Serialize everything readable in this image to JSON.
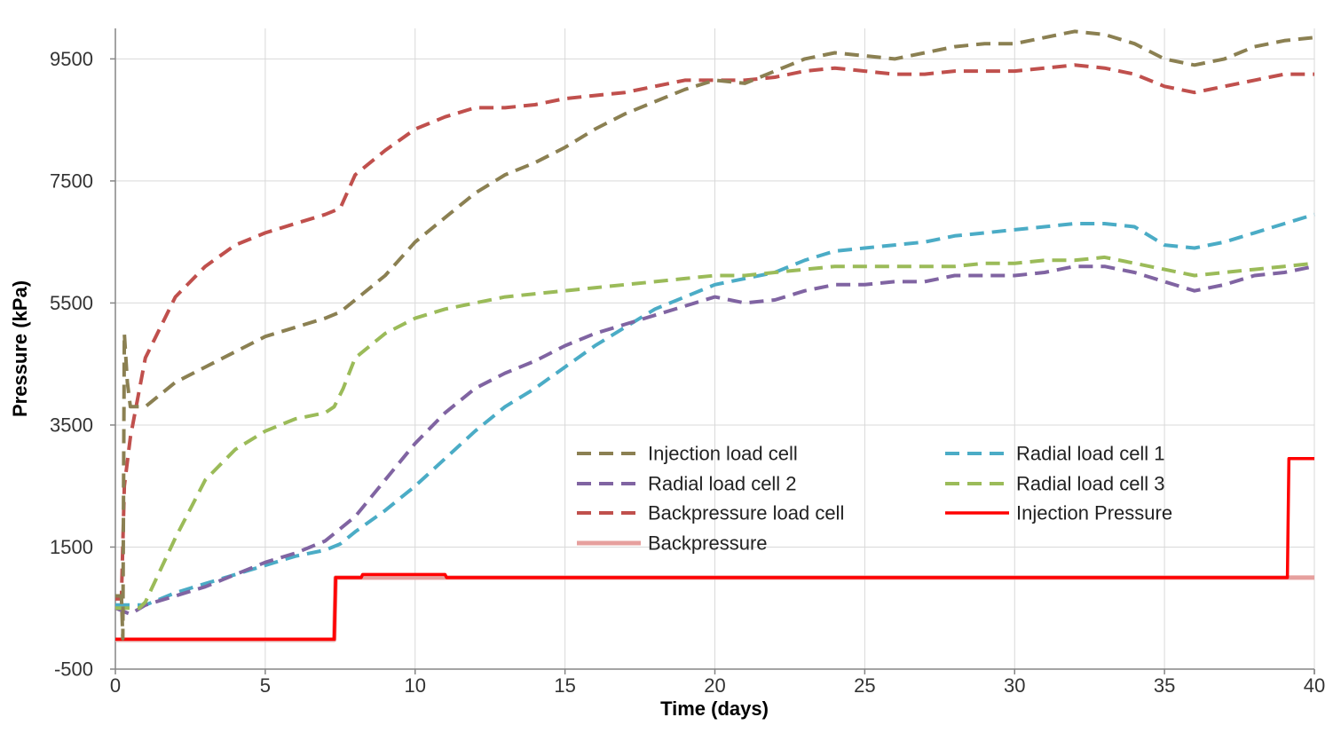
{
  "chart_data": {
    "type": "line",
    "title": "",
    "xlabel": "Time (days)",
    "ylabel": "Pressure (kPa)",
    "xlim": [
      0,
      40
    ],
    "ylim": [
      -500,
      10000
    ],
    "xticks": [
      0,
      5,
      10,
      15,
      20,
      25,
      30,
      35,
      40
    ],
    "yticks": [
      -500,
      1500,
      3500,
      5500,
      7500,
      9500
    ],
    "grid": true,
    "legend_position": "lower-center",
    "series": [
      {
        "name": "Injection load cell",
        "color": "#8b8052",
        "style": "dashed",
        "points": [
          [
            0,
            700
          ],
          [
            0.2,
            700
          ],
          [
            0.25,
            0
          ],
          [
            0.3,
            5000
          ],
          [
            0.4,
            4200
          ],
          [
            0.5,
            3800
          ],
          [
            1,
            3800
          ],
          [
            2,
            4200
          ],
          [
            3,
            4450
          ],
          [
            4,
            4700
          ],
          [
            5,
            4950
          ],
          [
            6,
            5100
          ],
          [
            7,
            5250
          ],
          [
            7.5,
            5350
          ],
          [
            8,
            5550
          ],
          [
            9,
            5950
          ],
          [
            10,
            6500
          ],
          [
            11,
            6900
          ],
          [
            12,
            7300
          ],
          [
            13,
            7600
          ],
          [
            14,
            7800
          ],
          [
            15,
            8050
          ],
          [
            16,
            8350
          ],
          [
            17,
            8600
          ],
          [
            18,
            8800
          ],
          [
            19,
            9000
          ],
          [
            20,
            9150
          ],
          [
            21,
            9100
          ],
          [
            22,
            9300
          ],
          [
            23,
            9500
          ],
          [
            24,
            9600
          ],
          [
            25,
            9550
          ],
          [
            26,
            9500
          ],
          [
            27,
            9600
          ],
          [
            28,
            9700
          ],
          [
            29,
            9750
          ],
          [
            30,
            9750
          ],
          [
            31,
            9850
          ],
          [
            32,
            9950
          ],
          [
            33,
            9900
          ],
          [
            34,
            9750
          ],
          [
            35,
            9500
          ],
          [
            36,
            9400
          ],
          [
            37,
            9500
          ],
          [
            38,
            9700
          ],
          [
            39,
            9800
          ],
          [
            40,
            9850
          ]
        ]
      },
      {
        "name": "Radial load cell 1",
        "color": "#4bacc6",
        "style": "dashed",
        "points": [
          [
            0,
            550
          ],
          [
            1,
            550
          ],
          [
            2,
            750
          ],
          [
            3,
            900
          ],
          [
            4,
            1050
          ],
          [
            5,
            1200
          ],
          [
            6,
            1350
          ],
          [
            7,
            1450
          ],
          [
            7.5,
            1550
          ],
          [
            8,
            1750
          ],
          [
            9,
            2100
          ],
          [
            10,
            2500
          ],
          [
            11,
            2950
          ],
          [
            12,
            3400
          ],
          [
            13,
            3800
          ],
          [
            14,
            4100
          ],
          [
            15,
            4450
          ],
          [
            16,
            4800
          ],
          [
            17,
            5100
          ],
          [
            18,
            5400
          ],
          [
            19,
            5600
          ],
          [
            20,
            5800
          ],
          [
            21,
            5900
          ],
          [
            22,
            6000
          ],
          [
            23,
            6200
          ],
          [
            24,
            6350
          ],
          [
            25,
            6400
          ],
          [
            26,
            6450
          ],
          [
            27,
            6500
          ],
          [
            28,
            6600
          ],
          [
            29,
            6650
          ],
          [
            30,
            6700
          ],
          [
            31,
            6750
          ],
          [
            32,
            6800
          ],
          [
            33,
            6800
          ],
          [
            34,
            6750
          ],
          [
            35,
            6450
          ],
          [
            36,
            6400
          ],
          [
            37,
            6500
          ],
          [
            38,
            6650
          ],
          [
            39,
            6800
          ],
          [
            40,
            6950
          ]
        ]
      },
      {
        "name": "Radial load cell 2",
        "color": "#8064a2",
        "style": "dashed",
        "points": [
          [
            0,
            500
          ],
          [
            0.5,
            400
          ],
          [
            1,
            550
          ],
          [
            2,
            700
          ],
          [
            3,
            850
          ],
          [
            4,
            1050
          ],
          [
            5,
            1250
          ],
          [
            6,
            1400
          ],
          [
            7,
            1600
          ],
          [
            8,
            2000
          ],
          [
            9,
            2600
          ],
          [
            10,
            3200
          ],
          [
            11,
            3700
          ],
          [
            12,
            4100
          ],
          [
            13,
            4350
          ],
          [
            14,
            4550
          ],
          [
            15,
            4800
          ],
          [
            16,
            5000
          ],
          [
            17,
            5150
          ],
          [
            18,
            5300
          ],
          [
            19,
            5450
          ],
          [
            20,
            5600
          ],
          [
            21,
            5500
          ],
          [
            22,
            5550
          ],
          [
            23,
            5700
          ],
          [
            24,
            5800
          ],
          [
            25,
            5800
          ],
          [
            26,
            5850
          ],
          [
            27,
            5850
          ],
          [
            28,
            5950
          ],
          [
            29,
            5950
          ],
          [
            30,
            5950
          ],
          [
            31,
            6000
          ],
          [
            32,
            6100
          ],
          [
            33,
            6100
          ],
          [
            34,
            6000
          ],
          [
            35,
            5850
          ],
          [
            36,
            5700
          ],
          [
            37,
            5800
          ],
          [
            38,
            5950
          ],
          [
            39,
            6000
          ],
          [
            40,
            6100
          ]
        ]
      },
      {
        "name": "Radial load cell 3",
        "color": "#9bbb59",
        "style": "dashed",
        "points": [
          [
            0,
            500
          ],
          [
            0.8,
            500
          ],
          [
            1,
            600
          ],
          [
            2,
            1650
          ],
          [
            3,
            2600
          ],
          [
            4,
            3100
          ],
          [
            5,
            3400
          ],
          [
            6,
            3600
          ],
          [
            7,
            3700
          ],
          [
            7.3,
            3800
          ],
          [
            7.6,
            4100
          ],
          [
            8,
            4600
          ],
          [
            9,
            5000
          ],
          [
            10,
            5250
          ],
          [
            11,
            5400
          ],
          [
            12,
            5500
          ],
          [
            13,
            5600
          ],
          [
            14,
            5650
          ],
          [
            15,
            5700
          ],
          [
            16,
            5750
          ],
          [
            17,
            5800
          ],
          [
            18,
            5850
          ],
          [
            19,
            5900
          ],
          [
            20,
            5950
          ],
          [
            21,
            5950
          ],
          [
            22,
            6000
          ],
          [
            23,
            6050
          ],
          [
            24,
            6100
          ],
          [
            25,
            6100
          ],
          [
            26,
            6100
          ],
          [
            27,
            6100
          ],
          [
            28,
            6100
          ],
          [
            29,
            6150
          ],
          [
            30,
            6150
          ],
          [
            31,
            6200
          ],
          [
            32,
            6200
          ],
          [
            33,
            6250
          ],
          [
            34,
            6150
          ],
          [
            35,
            6050
          ],
          [
            36,
            5950
          ],
          [
            37,
            6000
          ],
          [
            38,
            6050
          ],
          [
            39,
            6100
          ],
          [
            40,
            6150
          ]
        ]
      },
      {
        "name": "Backpressure load cell",
        "color": "#c0504d",
        "style": "dashed",
        "points": [
          [
            0,
            650
          ],
          [
            0.2,
            650
          ],
          [
            0.3,
            2500
          ],
          [
            0.5,
            3300
          ],
          [
            1,
            4600
          ],
          [
            2,
            5600
          ],
          [
            3,
            6100
          ],
          [
            4,
            6450
          ],
          [
            5,
            6650
          ],
          [
            6,
            6800
          ],
          [
            7,
            6950
          ],
          [
            7.5,
            7050
          ],
          [
            8,
            7600
          ],
          [
            9,
            8000
          ],
          [
            10,
            8350
          ],
          [
            11,
            8550
          ],
          [
            12,
            8700
          ],
          [
            13,
            8700
          ],
          [
            14,
            8750
          ],
          [
            15,
            8850
          ],
          [
            16,
            8900
          ],
          [
            17,
            8950
          ],
          [
            18,
            9050
          ],
          [
            19,
            9150
          ],
          [
            20,
            9150
          ],
          [
            21,
            9150
          ],
          [
            22,
            9200
          ],
          [
            23,
            9300
          ],
          [
            24,
            9350
          ],
          [
            25,
            9300
          ],
          [
            26,
            9250
          ],
          [
            27,
            9250
          ],
          [
            28,
            9300
          ],
          [
            29,
            9300
          ],
          [
            30,
            9300
          ],
          [
            31,
            9350
          ],
          [
            32,
            9400
          ],
          [
            33,
            9350
          ],
          [
            34,
            9250
          ],
          [
            35,
            9050
          ],
          [
            36,
            8950
          ],
          [
            37,
            9050
          ],
          [
            38,
            9150
          ],
          [
            39,
            9250
          ],
          [
            40,
            9250
          ]
        ]
      },
      {
        "name": "Injection Pressure",
        "color": "#ff0000",
        "style": "solid",
        "points": [
          [
            0,
            -10
          ],
          [
            7.3,
            -10
          ],
          [
            7.35,
            1000
          ],
          [
            8.2,
            1000
          ],
          [
            8.25,
            1050
          ],
          [
            11,
            1050
          ],
          [
            11.05,
            1000
          ],
          [
            39.1,
            1000
          ],
          [
            39.15,
            2950
          ],
          [
            40,
            2950
          ]
        ]
      },
      {
        "name": "Backpressure",
        "color": "#e6a09e",
        "style": "solid",
        "points": [
          [
            0,
            -20
          ],
          [
            7.3,
            -20
          ],
          [
            7.35,
            1000
          ],
          [
            40,
            1000
          ]
        ]
      }
    ]
  }
}
